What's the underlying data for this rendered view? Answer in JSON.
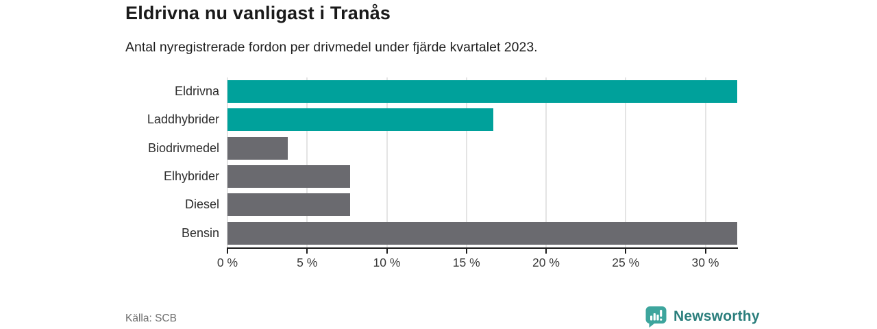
{
  "header": {
    "title": "Eldrivna nu vanligast i Tranås",
    "subtitle": "Antal nyregistrerade fordon per drivmedel under fjärde kvartalet 2023."
  },
  "chart_data": {
    "type": "bar",
    "orientation": "horizontal",
    "title": "Eldrivna nu vanligast i Tranås",
    "subtitle": "Antal nyregistrerade fordon per drivmedel under fjärde kvartalet 2023.",
    "categories": [
      "Eldrivna",
      "Laddhybrider",
      "Biodrivmedel",
      "Elhybrider",
      "Diesel",
      "Bensin"
    ],
    "values": [
      32,
      16.7,
      3.8,
      7.7,
      7.7,
      32
    ],
    "unit": "%",
    "bar_colors": [
      "#00a19b",
      "#00a19b",
      "#6a6a6f",
      "#6a6a6f",
      "#6a6a6f",
      "#6a6a6f"
    ],
    "xlim": [
      0,
      32
    ],
    "tick_values": [
      0,
      5,
      10,
      15,
      20,
      25,
      30
    ],
    "tick_labels": [
      "0 %",
      "5 %",
      "10 %",
      "15 %",
      "20 %",
      "25 %",
      "30 %"
    ],
    "grid": true,
    "legend": false
  },
  "footer": {
    "source": "Källa: SCB",
    "brand": "Newsworthy"
  },
  "colors": {
    "highlight_bar": "#00a19b",
    "default_bar": "#6a6a6f",
    "gridline": "#e4e4e4",
    "axis": "#1a1a1a",
    "title_text": "#1a1a1a",
    "label_text": "#2d2d2d",
    "tick_text": "#3a3a3a",
    "muted_text": "#6e6e6e",
    "brand_text": "#2a7e7c",
    "brand_icon_fill": "#3da59d"
  }
}
